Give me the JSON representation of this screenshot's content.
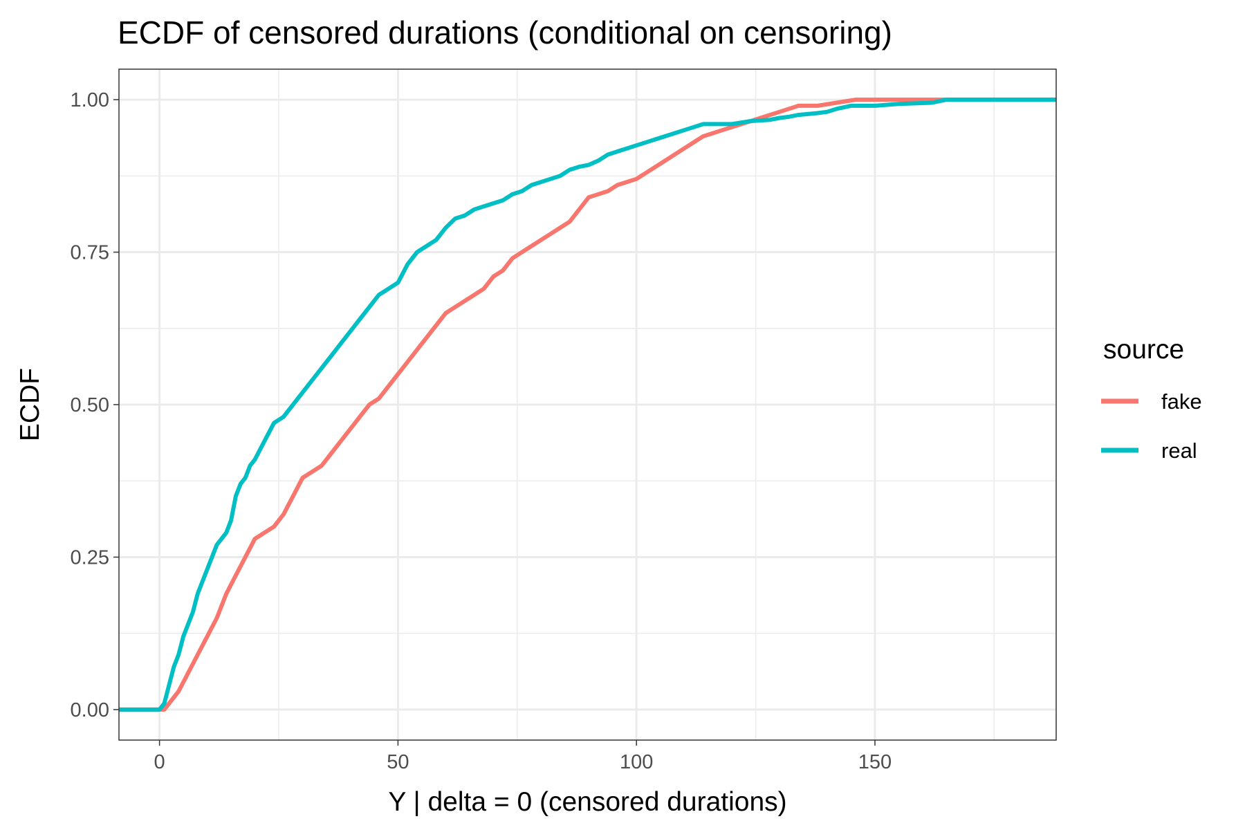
{
  "chart_data": {
    "type": "line",
    "title": "ECDF of censored durations (conditional on censoring)",
    "xlabel": "Y | delta = 0 (censored durations)",
    "ylabel": "ECDF",
    "xlim": [
      -8.5,
      188
    ],
    "ylim": [
      -0.05,
      1.05
    ],
    "x_ticks": [
      0,
      50,
      100,
      150
    ],
    "x_tick_labels": [
      "0",
      "50",
      "100",
      "150"
    ],
    "y_ticks": [
      0,
      0.25,
      0.5,
      0.75,
      1.0
    ],
    "y_tick_labels": [
      "0.00",
      "0.25",
      "0.50",
      "0.75",
      "1.00"
    ],
    "x_minor_ticks": [
      25,
      75,
      125,
      175
    ],
    "y_minor_ticks": [
      0.125,
      0.375,
      0.625,
      0.875
    ],
    "grid": true,
    "legend": {
      "title": "source",
      "position": "right"
    },
    "series": [
      {
        "name": "fake",
        "color": "#F8766D",
        "points": [
          [
            -8.5,
            0
          ],
          [
            0,
            0
          ],
          [
            1,
            0
          ],
          [
            2,
            0.01
          ],
          [
            4,
            0.03
          ],
          [
            6,
            0.06
          ],
          [
            8,
            0.09
          ],
          [
            10,
            0.12
          ],
          [
            12,
            0.15
          ],
          [
            14,
            0.19
          ],
          [
            16,
            0.22
          ],
          [
            18,
            0.25
          ],
          [
            20,
            0.28
          ],
          [
            22,
            0.29
          ],
          [
            24,
            0.3
          ],
          [
            26,
            0.32
          ],
          [
            28,
            0.35
          ],
          [
            30,
            0.38
          ],
          [
            32,
            0.39
          ],
          [
            34,
            0.4
          ],
          [
            36,
            0.42
          ],
          [
            38,
            0.44
          ],
          [
            40,
            0.46
          ],
          [
            42,
            0.48
          ],
          [
            44,
            0.5
          ],
          [
            46,
            0.51
          ],
          [
            48,
            0.53
          ],
          [
            50,
            0.55
          ],
          [
            52,
            0.57
          ],
          [
            54,
            0.59
          ],
          [
            56,
            0.61
          ],
          [
            58,
            0.63
          ],
          [
            60,
            0.65
          ],
          [
            62,
            0.66
          ],
          [
            64,
            0.67
          ],
          [
            66,
            0.68
          ],
          [
            68,
            0.69
          ],
          [
            70,
            0.71
          ],
          [
            72,
            0.72
          ],
          [
            74,
            0.74
          ],
          [
            76,
            0.75
          ],
          [
            78,
            0.76
          ],
          [
            80,
            0.77
          ],
          [
            82,
            0.78
          ],
          [
            84,
            0.79
          ],
          [
            86,
            0.8
          ],
          [
            88,
            0.82
          ],
          [
            90,
            0.84
          ],
          [
            92,
            0.845
          ],
          [
            94,
            0.85
          ],
          [
            96,
            0.86
          ],
          [
            98,
            0.865
          ],
          [
            100,
            0.87
          ],
          [
            102,
            0.88
          ],
          [
            104,
            0.89
          ],
          [
            106,
            0.9
          ],
          [
            108,
            0.91
          ],
          [
            110,
            0.92
          ],
          [
            112,
            0.93
          ],
          [
            114,
            0.94
          ],
          [
            116,
            0.945
          ],
          [
            118,
            0.95
          ],
          [
            120,
            0.955
          ],
          [
            122,
            0.96
          ],
          [
            124,
            0.965
          ],
          [
            126,
            0.97
          ],
          [
            128,
            0.975
          ],
          [
            130,
            0.98
          ],
          [
            132,
            0.985
          ],
          [
            134,
            0.99
          ],
          [
            138,
            0.99
          ],
          [
            142,
            0.995
          ],
          [
            146,
            1.0
          ],
          [
            150,
            1.0
          ],
          [
            160,
            1.0
          ],
          [
            188,
            1.0
          ]
        ]
      },
      {
        "name": "real",
        "color": "#00BFC4",
        "points": [
          [
            -8.5,
            0
          ],
          [
            0,
            0
          ],
          [
            1,
            0.01
          ],
          [
            2,
            0.04
          ],
          [
            3,
            0.07
          ],
          [
            4,
            0.09
          ],
          [
            5,
            0.12
          ],
          [
            6,
            0.14
          ],
          [
            7,
            0.16
          ],
          [
            8,
            0.19
          ],
          [
            9,
            0.21
          ],
          [
            10,
            0.23
          ],
          [
            11,
            0.25
          ],
          [
            12,
            0.27
          ],
          [
            13,
            0.28
          ],
          [
            14,
            0.29
          ],
          [
            15,
            0.31
          ],
          [
            16,
            0.35
          ],
          [
            17,
            0.37
          ],
          [
            18,
            0.38
          ],
          [
            19,
            0.4
          ],
          [
            20,
            0.41
          ],
          [
            22,
            0.44
          ],
          [
            24,
            0.47
          ],
          [
            26,
            0.48
          ],
          [
            28,
            0.5
          ],
          [
            30,
            0.52
          ],
          [
            32,
            0.54
          ],
          [
            34,
            0.56
          ],
          [
            36,
            0.58
          ],
          [
            38,
            0.6
          ],
          [
            40,
            0.62
          ],
          [
            42,
            0.64
          ],
          [
            44,
            0.66
          ],
          [
            46,
            0.68
          ],
          [
            48,
            0.69
          ],
          [
            50,
            0.7
          ],
          [
            52,
            0.73
          ],
          [
            54,
            0.75
          ],
          [
            56,
            0.76
          ],
          [
            58,
            0.77
          ],
          [
            60,
            0.79
          ],
          [
            62,
            0.805
          ],
          [
            64,
            0.81
          ],
          [
            66,
            0.82
          ],
          [
            68,
            0.825
          ],
          [
            70,
            0.83
          ],
          [
            72,
            0.835
          ],
          [
            74,
            0.845
          ],
          [
            76,
            0.85
          ],
          [
            78,
            0.86
          ],
          [
            80,
            0.865
          ],
          [
            82,
            0.87
          ],
          [
            84,
            0.875
          ],
          [
            86,
            0.885
          ],
          [
            88,
            0.89
          ],
          [
            90,
            0.893
          ],
          [
            92,
            0.9
          ],
          [
            94,
            0.91
          ],
          [
            96,
            0.915
          ],
          [
            98,
            0.92
          ],
          [
            100,
            0.925
          ],
          [
            102,
            0.93
          ],
          [
            104,
            0.935
          ],
          [
            106,
            0.94
          ],
          [
            108,
            0.945
          ],
          [
            110,
            0.95
          ],
          [
            112,
            0.955
          ],
          [
            114,
            0.96
          ],
          [
            120,
            0.96
          ],
          [
            124,
            0.965
          ],
          [
            128,
            0.967
          ],
          [
            130,
            0.97
          ],
          [
            132,
            0.972
          ],
          [
            134,
            0.975
          ],
          [
            138,
            0.978
          ],
          [
            140,
            0.98
          ],
          [
            142,
            0.985
          ],
          [
            145,
            0.99
          ],
          [
            150,
            0.99
          ],
          [
            155,
            0.993
          ],
          [
            162,
            0.995
          ],
          [
            165,
            1.0
          ],
          [
            188,
            1.0
          ]
        ]
      }
    ]
  }
}
